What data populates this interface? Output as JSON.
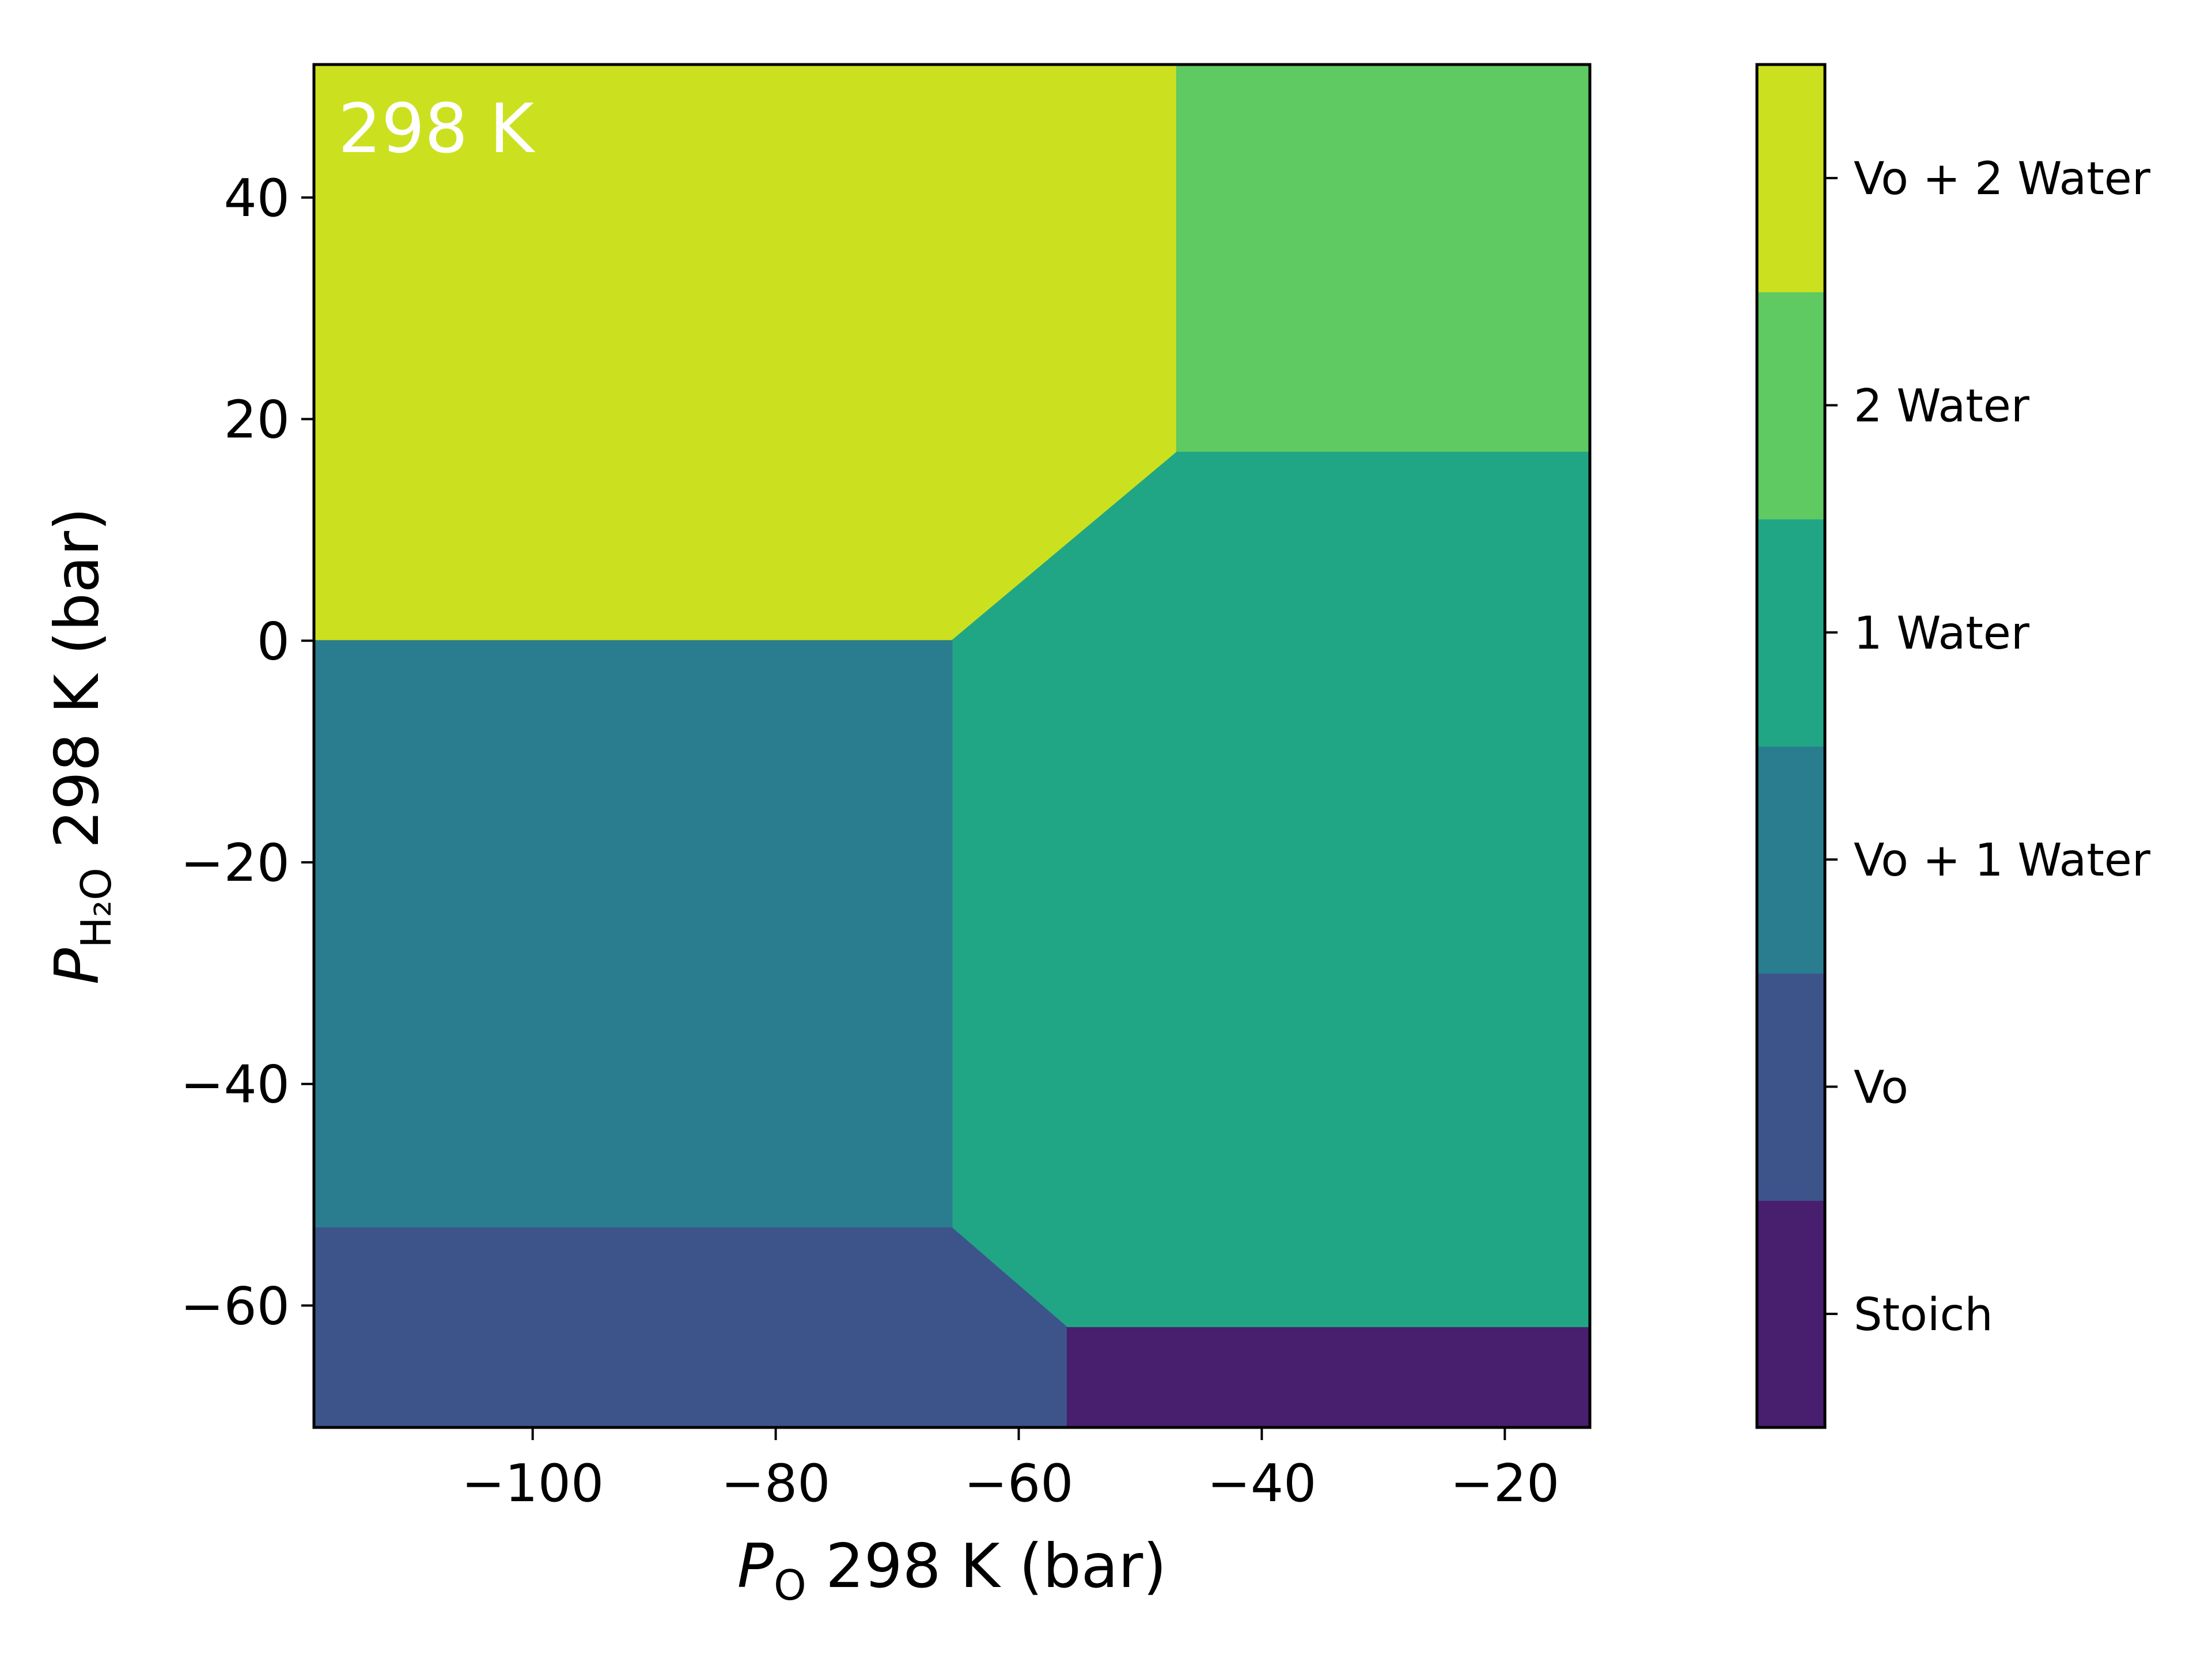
{
  "chart_data": {
    "type": "heatmap",
    "annotation": "298 K",
    "xlabel": {
      "symbol": "P",
      "subscript": "O",
      "rest": " 298 K (bar)"
    },
    "ylabel": {
      "symbol": "P",
      "subscript": "H₂O",
      "rest": " 298 K (bar)"
    },
    "xlim": [
      -118,
      -13
    ],
    "ylim": [
      -71,
      52
    ],
    "xticks": [
      -100,
      -80,
      -60,
      -40,
      -20
    ],
    "yticks": [
      40,
      20,
      0,
      -20,
      -40,
      -60
    ],
    "xtick_labels": [
      "−100",
      "−80",
      "−60",
      "−40",
      "−20"
    ],
    "ytick_labels": [
      "40",
      "20",
      "0",
      "−20",
      "−40",
      "−60"
    ],
    "grid": false,
    "legend": "colorbar-right",
    "phases": [
      {
        "name": "Stoich",
        "color": "#481e6e"
      },
      {
        "name": "Vo",
        "color": "#3d548b"
      },
      {
        "name": "Vo + 1 Water",
        "color": "#2a7d8e"
      },
      {
        "name": "1 Water",
        "color": "#21a685"
      },
      {
        "name": "2 Water",
        "color": "#5fc962"
      },
      {
        "name": "Vo + 2 Water",
        "color": "#cbe11f"
      }
    ],
    "regions": [
      {
        "phase": "Vo + 2 Water",
        "polygon": [
          [
            -118,
            52
          ],
          [
            -47,
            52
          ],
          [
            -47,
            17
          ],
          [
            -65.5,
            0
          ],
          [
            -118,
            0
          ]
        ]
      },
      {
        "phase": "2 Water",
        "polygon": [
          [
            -47,
            52
          ],
          [
            -13,
            52
          ],
          [
            -13,
            17
          ],
          [
            -47,
            17
          ]
        ]
      },
      {
        "phase": "1 Water",
        "polygon": [
          [
            -47,
            17
          ],
          [
            -13,
            17
          ],
          [
            -13,
            -62
          ],
          [
            -56,
            -62
          ],
          [
            -65.5,
            -53
          ],
          [
            -65.5,
            0
          ]
        ]
      },
      {
        "phase": "Vo + 1 Water",
        "polygon": [
          [
            -118,
            0
          ],
          [
            -65.5,
            0
          ],
          [
            -65.5,
            -53
          ],
          [
            -118,
            -53
          ]
        ]
      },
      {
        "phase": "Vo",
        "polygon": [
          [
            -118,
            -53
          ],
          [
            -65.5,
            -53
          ],
          [
            -56,
            -62
          ],
          [
            -56,
            -71
          ],
          [
            -118,
            -71
          ]
        ]
      },
      {
        "phase": "Stoich",
        "polygon": [
          [
            -56,
            -62
          ],
          [
            -13,
            -62
          ],
          [
            -13,
            -71
          ],
          [
            -56,
            -71
          ]
        ]
      }
    ]
  }
}
